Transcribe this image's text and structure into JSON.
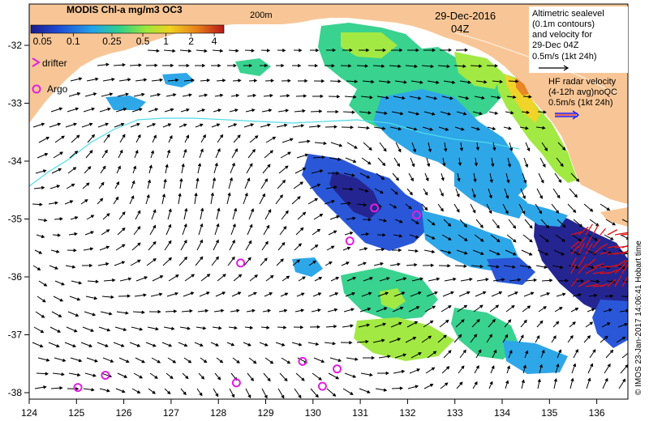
{
  "title": "MODIS Chl-a mg/m3 OC3",
  "date": "29-Dec-2016",
  "time": "04Z",
  "isobath_label": "200m",
  "colorbar": {
    "ticks": [
      "0.05",
      "0.1",
      "0.25",
      "0.5",
      "1",
      "2",
      "4"
    ],
    "colors": [
      "#1a1a8c",
      "#1f4fd6",
      "#23a3e8",
      "#2fd08a",
      "#9ee83a",
      "#f0d21e",
      "#e8801a",
      "#b81818"
    ]
  },
  "legend": {
    "drifter": "drifter",
    "argo": "Argo",
    "altimetric": [
      "Altimetric sealevel",
      "(0.1m contours)",
      "and velocity for",
      "29-Dec 04Z",
      "0.5m/s (1kt 24h)"
    ],
    "hf_radar": [
      "HF radar velocity",
      "(4-12h avg)noQC",
      "0.5m/s (1kt 24h)"
    ]
  },
  "copyright": "© IMOS 23-Jan-2017 14:06:41 Hobart time",
  "axes": {
    "x_ticks": [
      "124",
      "125",
      "126",
      "127",
      "128",
      "129",
      "130",
      "131",
      "132",
      "133",
      "134",
      "135",
      "136"
    ],
    "y_ticks": [
      "-32",
      "-33",
      "-34",
      "-35",
      "-36",
      "-37",
      "-38"
    ]
  },
  "argo_floats": [
    {
      "lon": 125.03,
      "lat": -37.91
    },
    {
      "lon": 125.61,
      "lat": -37.7
    },
    {
      "lon": 128.38,
      "lat": -37.83
    },
    {
      "lon": 128.47,
      "lat": -35.76
    },
    {
      "lon": 129.78,
      "lat": -37.46
    },
    {
      "lon": 130.2,
      "lat": -37.89
    },
    {
      "lon": 130.51,
      "lat": -37.59
    },
    {
      "lon": 130.78,
      "lat": -35.38
    },
    {
      "lon": 131.3,
      "lat": -34.81
    },
    {
      "lon": 132.19,
      "lat": -34.93
    }
  ],
  "colors": {
    "land": "#f8c696",
    "argo": "#e020e0",
    "hf_arrow": "#e01010",
    "vector": "#000000",
    "contour": "#4fdbe8"
  }
}
